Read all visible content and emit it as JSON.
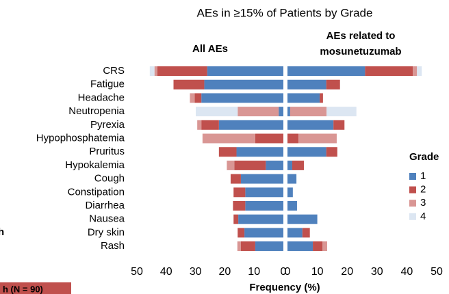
{
  "chart_data": {
    "type": "butterfly_bar",
    "title": "AEs in ≥15% of Patients by Grade",
    "xlabel": "Frequency (%)",
    "categories": [
      "CRS",
      "Fatigue",
      "Headache",
      "Neutropenia",
      "Pyrexia",
      "Hypophosphatemia",
      "Pruritus",
      "Hypokalemia",
      "Cough",
      "Constipation",
      "Diarrhea",
      "Nausea",
      "Dry skin",
      "Rash"
    ],
    "legend": {
      "title": "Grade",
      "entries": [
        {
          "name": "1",
          "color": "#4f81bd"
        },
        {
          "name": "2",
          "color": "#c0504d"
        },
        {
          "name": "3",
          "color": "#d99694"
        },
        {
          "name": "4",
          "color": "#dce6f2"
        }
      ]
    },
    "panels": [
      {
        "title": "All AEs",
        "xlim": [
          50,
          0
        ],
        "xticks": [
          50,
          40,
          30,
          20,
          10,
          0
        ],
        "values": [
          [
            26,
            27,
            28,
            1.6,
            22,
            0,
            16,
            6,
            14.5,
            13,
            13,
            15.4,
            13.3,
            9.6
          ],
          [
            17,
            10.5,
            2.3,
            0,
            6,
            9.6,
            6,
            10.7,
            3.5,
            4,
            4.2,
            1.6,
            2.3,
            4.9
          ],
          [
            1,
            0,
            1.6,
            14,
            1.4,
            18,
            0,
            2.6,
            0,
            0,
            0,
            0,
            0,
            1.2
          ],
          [
            1.6,
            0,
            0,
            14.3,
            0,
            0,
            0,
            0,
            0,
            0,
            0,
            0,
            0,
            0
          ]
        ]
      },
      {
        "title": "AEs related to mosunetuzumab",
        "xlim": [
          0,
          50
        ],
        "xticks": [
          0,
          10,
          20,
          30,
          40,
          50
        ],
        "values": [
          [
            26,
            13,
            10.8,
            0.9,
            15.4,
            0,
            13,
            1.6,
            3,
            1.8,
            3.2,
            10,
            5,
            8.5
          ],
          [
            16,
            4.6,
            1.1,
            0,
            3.7,
            3.7,
            3.7,
            3.9,
            0,
            0,
            0,
            0,
            2.5,
            3.2
          ],
          [
            1.4,
            0,
            0,
            12.2,
            0,
            12.8,
            0,
            0,
            0,
            0,
            0,
            0,
            0,
            1.6
          ],
          [
            1.6,
            0,
            0,
            10,
            0,
            0,
            0,
            0,
            0,
            0,
            0,
            0,
            0,
            0
          ]
        ]
      }
    ]
  },
  "fragments": {
    "side_text": "h",
    "box_text": "h (N = 90)"
  }
}
